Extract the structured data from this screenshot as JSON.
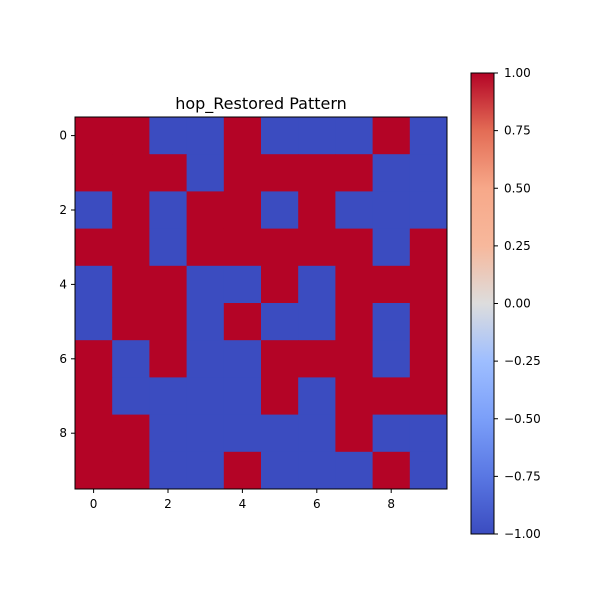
{
  "chart_data": {
    "type": "heatmap",
    "title": "hop_Restored Pattern",
    "colormap": "coolwarm",
    "vmin": -1.0,
    "vmax": 1.0,
    "low_color": "#3b4cc0",
    "high_color": "#b40426",
    "mid_color": "#dddddd",
    "x_ticks": [
      "0",
      "2",
      "4",
      "6",
      "8"
    ],
    "y_ticks": [
      "0",
      "2",
      "4",
      "6",
      "8"
    ],
    "colorbar_ticks": [
      "1.00",
      "0.75",
      "0.50",
      "0.25",
      "0.00",
      "−0.25",
      "−0.50",
      "−0.75",
      "−1.00"
    ],
    "matrix": [
      [
        1,
        1,
        -1,
        -1,
        1,
        -1,
        -1,
        -1,
        1,
        -1
      ],
      [
        1,
        1,
        1,
        -1,
        1,
        1,
        1,
        1,
        -1,
        -1
      ],
      [
        -1,
        1,
        -1,
        1,
        1,
        -1,
        1,
        -1,
        -1,
        -1
      ],
      [
        1,
        1,
        -1,
        1,
        1,
        1,
        1,
        1,
        -1,
        1
      ],
      [
        -1,
        1,
        1,
        -1,
        -1,
        1,
        -1,
        1,
        1,
        1
      ],
      [
        -1,
        1,
        1,
        -1,
        1,
        -1,
        -1,
        1,
        -1,
        1
      ],
      [
        1,
        -1,
        1,
        -1,
        -1,
        1,
        1,
        1,
        -1,
        1
      ],
      [
        1,
        -1,
        -1,
        -1,
        -1,
        1,
        -1,
        1,
        1,
        1
      ],
      [
        1,
        1,
        -1,
        -1,
        -1,
        -1,
        -1,
        1,
        -1,
        -1
      ],
      [
        1,
        1,
        -1,
        -1,
        1,
        -1,
        -1,
        -1,
        1,
        -1
      ]
    ]
  }
}
